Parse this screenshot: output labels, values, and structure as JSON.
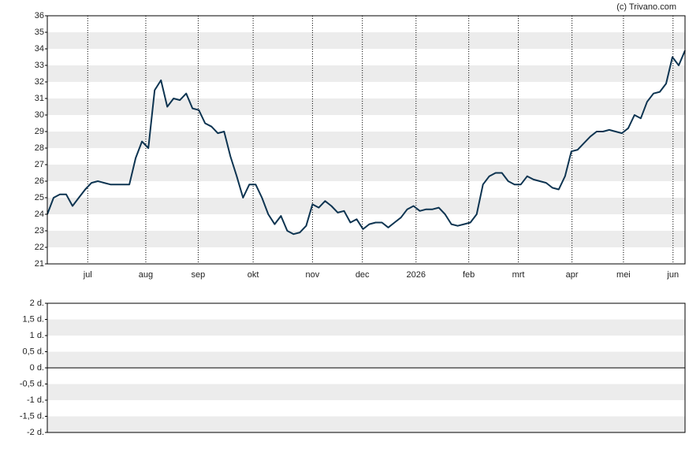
{
  "chart_data": [
    {
      "type": "line",
      "credit": "(c) Trivano.com",
      "xlim": [
        0,
        101
      ],
      "xticks": [
        {
          "value": 6.4,
          "label": "jul"
        },
        {
          "value": 15.6,
          "label": "aug"
        },
        {
          "value": 23.9,
          "label": "sep"
        },
        {
          "value": 32.6,
          "label": "okt"
        },
        {
          "value": 42,
          "label": "nov"
        },
        {
          "value": 49.9,
          "label": "dec"
        },
        {
          "value": 58.4,
          "label": "2026"
        },
        {
          "value": 66.75,
          "label": "feb"
        },
        {
          "value": 74.6,
          "label": "mrt"
        },
        {
          "value": 83.1,
          "label": "apr"
        },
        {
          "value": 91.25,
          "label": "mei"
        },
        {
          "value": 99.1,
          "label": "jun"
        }
      ],
      "ylim": [
        21,
        36
      ],
      "yticks": [
        21,
        22,
        23,
        24,
        25,
        26,
        27,
        28,
        29,
        30,
        31,
        32,
        33,
        34,
        35,
        36
      ],
      "color": "#0d3451",
      "values": [
        24.0,
        25.0,
        25.2,
        25.2,
        24.5,
        25.0,
        25.5,
        25.9,
        26.0,
        25.9,
        25.8,
        25.8,
        25.8,
        25.8,
        27.4,
        28.4,
        28.0,
        31.5,
        32.1,
        30.5,
        31.0,
        30.9,
        31.3,
        30.4,
        30.3,
        29.5,
        29.3,
        28.9,
        29.0,
        27.5,
        26.3,
        25.0,
        25.8,
        25.8,
        25.0,
        24.0,
        23.4,
        23.9,
        23.0,
        22.8,
        22.9,
        23.3,
        24.6,
        24.4,
        24.8,
        24.5,
        24.1,
        24.2,
        23.5,
        23.7,
        23.1,
        23.4,
        23.5,
        23.5,
        23.2,
        23.5,
        23.8,
        24.3,
        24.5,
        24.2,
        24.3,
        24.3,
        24.4,
        24.0,
        23.4,
        23.3,
        23.4,
        23.5,
        24.0,
        25.8,
        26.3,
        26.5,
        26.5,
        26.0,
        25.8,
        25.8,
        26.3,
        26.1,
        26.0,
        25.9,
        25.6,
        25.5,
        26.3,
        27.8,
        27.9,
        28.3,
        28.7,
        29.0,
        29.0,
        29.1,
        29.0,
        28.9,
        29.2,
        30.0,
        29.8,
        30.8,
        31.3,
        31.4,
        31.9,
        33.5,
        33.0,
        33.9
      ]
    },
    {
      "type": "line",
      "ylim": [
        -2,
        2
      ],
      "yticks": [
        {
          "value": -2,
          "label": "-2 d."
        },
        {
          "value": -1.5,
          "label": "-1,5 d."
        },
        {
          "value": -1,
          "label": "-1 d."
        },
        {
          "value": -0.5,
          "label": "-0,5 d."
        },
        {
          "value": 0,
          "label": "0 d."
        },
        {
          "value": 0.5,
          "label": "0,5 d."
        },
        {
          "value": 1,
          "label": "1 d."
        },
        {
          "value": 1.5,
          "label": "1,5 d."
        },
        {
          "value": 2,
          "label": "2 d."
        }
      ]
    }
  ]
}
